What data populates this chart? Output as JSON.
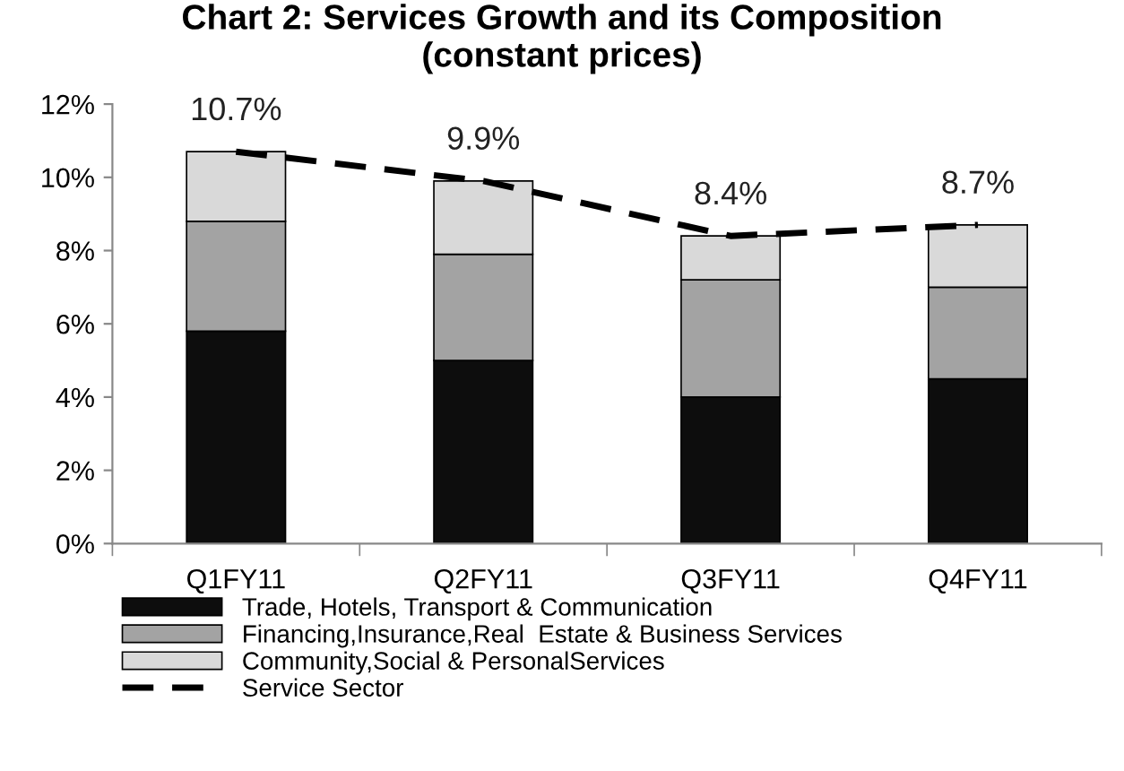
{
  "chart_data": {
    "type": "bar",
    "title": "Chart 2: Services Growth and its Composition\n(constant prices)",
    "categories": [
      "Q1FY11",
      "Q2FY11",
      "Q3FY11",
      "Q4FY11"
    ],
    "stacked": true,
    "series": [
      {
        "name": "Trade, Hotels, Transport & Communication",
        "color": "#0d0d0d",
        "values": [
          5.8,
          5.0,
          4.0,
          4.5
        ]
      },
      {
        "name": "Financing,Insurance,Real  Estate & Business Services",
        "color": "#a3a3a3",
        "values": [
          3.0,
          2.9,
          3.2,
          2.5
        ]
      },
      {
        "name": "Community,Social & PersonalServices",
        "color": "#d9d9d9",
        "values": [
          1.9,
          2.0,
          1.2,
          1.7
        ]
      },
      {
        "name": "Service Sector",
        "type": "line",
        "color": "#000000",
        "line_style": "dashed",
        "values": [
          10.7,
          9.9,
          8.4,
          8.7
        ],
        "value_labels": [
          "10.7%",
          "9.9%",
          "8.4%",
          "8.7%"
        ]
      }
    ],
    "ylim": [
      0,
      12
    ],
    "yticks": [
      {
        "value": 0,
        "label": "0%"
      },
      {
        "value": 2,
        "label": "2%"
      },
      {
        "value": 4,
        "label": "4%"
      },
      {
        "value": 6,
        "label": "6%"
      },
      {
        "value": 8,
        "label": "8%"
      },
      {
        "value": 10,
        "label": "10%"
      },
      {
        "value": 12,
        "label": "12%"
      }
    ],
    "grid": false,
    "legend": "bottom"
  }
}
